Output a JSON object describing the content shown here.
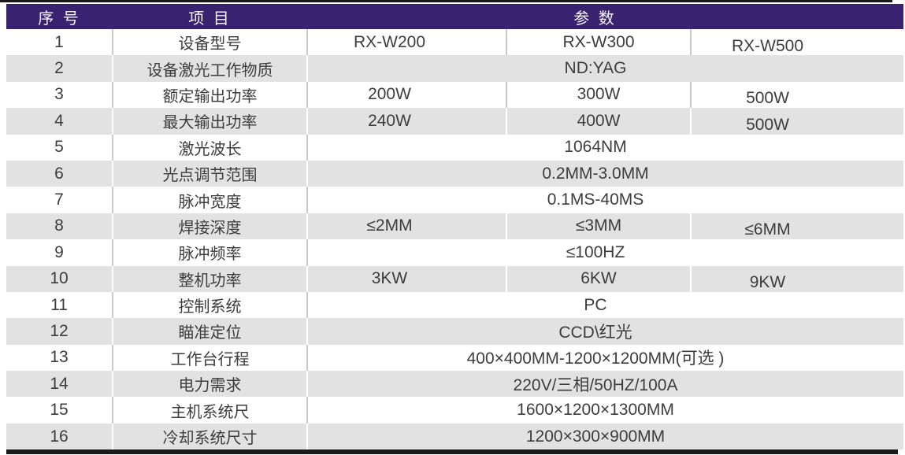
{
  "colors": {
    "header_bg": "#392270",
    "row_alt_bg": "#e2e2e2",
    "accent_bar": "#1a1a1a",
    "text": "#3d3d3d"
  },
  "table": {
    "header": {
      "cols": [
        "序 号",
        "项 目",
        "参 数"
      ]
    },
    "rows": [
      {
        "no": "1",
        "item": "设备型号",
        "cells": [
          "RX-W200",
          "RX-W300",
          "RX-W500"
        ]
      },
      {
        "no": "2",
        "item": "设备激光工作物质",
        "cells": [
          "ND:YAG"
        ]
      },
      {
        "no": "3",
        "item": "额定输出功率",
        "cells": [
          "200W",
          "300W",
          "500W"
        ]
      },
      {
        "no": "4",
        "item": "最大输出功率",
        "cells": [
          "240W",
          "400W",
          "500W"
        ]
      },
      {
        "no": "5",
        "item": "激光波长",
        "cells": [
          "1064NM"
        ]
      },
      {
        "no": "6",
        "item": "光点调节范围",
        "cells": [
          "0.2MM-3.0MM"
        ]
      },
      {
        "no": "7",
        "item": "脉冲宽度",
        "cells": [
          "0.1MS-40MS"
        ]
      },
      {
        "no": "8",
        "item": "焊接深度",
        "cells": [
          "≤2MM",
          "≤3MM",
          "≤6MM"
        ]
      },
      {
        "no": "9",
        "item": "脉冲频率",
        "cells": [
          "≤100HZ"
        ]
      },
      {
        "no": "10",
        "item": "整机功率",
        "cells": [
          "3KW",
          "6KW",
          "9KW"
        ]
      },
      {
        "no": "11",
        "item": "控制系统",
        "cells": [
          "PC"
        ]
      },
      {
        "no": "12",
        "item": "瞄准定位",
        "cells": [
          "CCD\\红光"
        ]
      },
      {
        "no": "13",
        "item": "工作台行程",
        "cells": [
          "400×400MM-1200×1200MM(可选 )"
        ]
      },
      {
        "no": "14",
        "item": "电力需求",
        "cells": [
          "220V/三相/50HZ/100A"
        ]
      },
      {
        "no": "15",
        "item": "主机系统尺",
        "cells": [
          "1600×1200×1300MM"
        ]
      },
      {
        "no": "16",
        "item": "冷却系统尺寸",
        "cells": [
          "1200×300×900MM"
        ]
      }
    ]
  }
}
